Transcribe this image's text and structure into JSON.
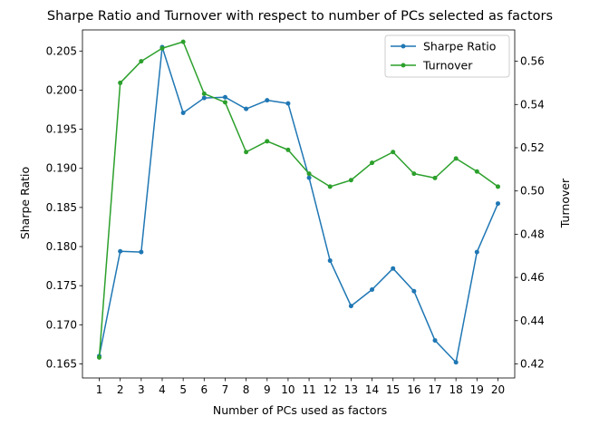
{
  "chart_data": {
    "type": "line",
    "title": "Sharpe Ratio and Turnover with respect to number of PCs selected as factors",
    "xlabel": "Number of PCs used as factors",
    "ylabel_left": "Sharpe Ratio",
    "ylabel_right": "Turnover",
    "x": [
      1,
      2,
      3,
      4,
      5,
      6,
      7,
      8,
      9,
      10,
      11,
      12,
      13,
      14,
      15,
      16,
      17,
      18,
      19,
      20
    ],
    "xlim": [
      0.2,
      20.8
    ],
    "ylim_left": [
      0.1632,
      0.2077
    ],
    "ylim_right": [
      0.4135,
      0.5745
    ],
    "yticks_left": [
      "0.165",
      "0.170",
      "0.175",
      "0.180",
      "0.185",
      "0.190",
      "0.195",
      "0.200",
      "0.205"
    ],
    "yticks_right": [
      "0.42",
      "0.44",
      "0.46",
      "0.48",
      "0.50",
      "0.52",
      "0.54",
      "0.56"
    ],
    "grid": false,
    "legend_position": "top-right",
    "series": [
      {
        "name": "Sharpe Ratio",
        "axis": "left",
        "color": "#1f77b4",
        "values": [
          0.166,
          0.1794,
          0.1793,
          0.2055,
          0.1971,
          0.199,
          0.1991,
          0.1976,
          0.1987,
          0.1983,
          0.1888,
          0.1782,
          0.1724,
          0.1745,
          0.1772,
          0.1743,
          0.168,
          0.1652,
          0.1793,
          0.1855
        ]
      },
      {
        "name": "Turnover",
        "axis": "right",
        "color": "#2ca02c",
        "values": [
          0.423,
          0.55,
          0.56,
          0.566,
          0.569,
          0.545,
          0.541,
          0.518,
          0.523,
          0.519,
          0.508,
          0.502,
          0.505,
          0.513,
          0.518,
          0.508,
          0.506,
          0.515,
          0.509,
          0.502
        ]
      }
    ]
  }
}
